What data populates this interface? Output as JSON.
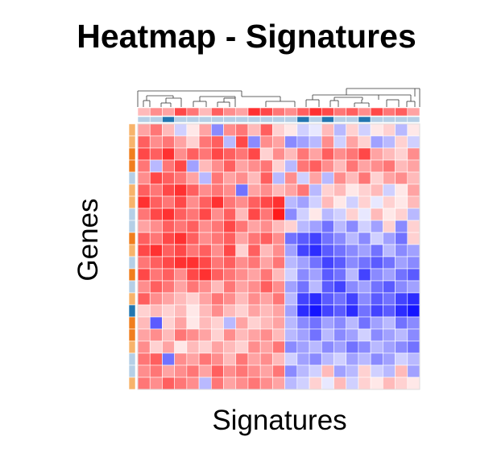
{
  "chart_data": {
    "type": "heatmap",
    "title": "Heatmap - Signatures",
    "xlabel": "Signatures",
    "ylabel": "Genes",
    "n_columns": 23,
    "n_rows": 22,
    "value_range": [
      -1,
      1
    ],
    "colors": {
      "low": "#1414ff",
      "mid": "#ffffff",
      "high": "#ff1a1a"
    },
    "column_annotation_colors": {
      "a": "#b5cfe6",
      "b": "#2276b0"
    },
    "row_annotation_colors": {
      "a": "#f7b36b",
      "b": "#f07e1e",
      "c": "#b5cfe6",
      "d": "#2276b0"
    },
    "column_top_values": [
      0.3,
      0.5,
      0.4,
      0.8,
      0.6,
      0.3,
      0.7,
      0.5,
      0.4,
      0.9,
      0.8,
      0.6,
      0.5,
      0.7,
      0.9,
      0.8,
      0.6,
      0.7,
      0.5,
      0.8,
      0.6,
      0.7,
      0.4
    ],
    "column_annotation": [
      "a",
      "a",
      "b",
      "a",
      "a",
      "a",
      "a",
      "a",
      "a",
      "a",
      "a",
      "a",
      "a",
      "b",
      "a",
      "b",
      "a",
      "a",
      "b",
      "a",
      "a",
      "a",
      "a"
    ],
    "row_annotation": [
      "a",
      "a",
      "b",
      "b",
      "c",
      "a",
      "a",
      "c",
      "c",
      "b",
      "a",
      "c",
      "b",
      "c",
      "a",
      "d",
      "b",
      "b",
      "a",
      "c",
      "c",
      "a"
    ],
    "matrix": [
      [
        0.4,
        0.6,
        0.3,
        -0.2,
        0.1,
        0.4,
        -0.5,
        0.5,
        0.6,
        0.3,
        0.7,
        0.2,
        0.1,
        -0.2,
        -0.1,
        0.3,
        -0.3,
        0.2,
        -0.2,
        0.1,
        0.2,
        -0.3,
        0.1
      ],
      [
        0.7,
        0.5,
        0.6,
        0.4,
        0.2,
        0.6,
        0.7,
        -0.3,
        0.8,
        -0.5,
        0.5,
        0.4,
        -0.5,
        -0.4,
        -0.3,
        0.5,
        -0.2,
        0.4,
        0.2,
        -0.4,
        -0.3,
        0.2,
        -0.2
      ],
      [
        0.8,
        0.7,
        0.9,
        0.5,
        0.7,
        0.6,
        0.8,
        0.7,
        0.6,
        0.8,
        0.2,
        0.5,
        0.3,
        0.6,
        0.4,
        0.7,
        0.5,
        0.6,
        0.8,
        0.4,
        0.3,
        0.2,
        0.5
      ],
      [
        0.6,
        -0.3,
        0.6,
        0.8,
        -0.4,
        0.3,
        0.5,
        0.7,
        0.4,
        0.5,
        0.6,
        0.2,
        -0.3,
        0.6,
        0.7,
        0.5,
        0.3,
        0.6,
        0.4,
        0.5,
        0.6,
        0.3,
        0.4
      ],
      [
        0.5,
        0.8,
        0.7,
        0.6,
        0.4,
        -0.3,
        0.6,
        0.4,
        0.5,
        0.3,
        0.7,
        -0.3,
        0.5,
        -0.2,
        0.4,
        -0.3,
        0.5,
        0.3,
        0.6,
        0.2,
        0.4,
        0.5,
        0.3
      ],
      [
        0.7,
        0.6,
        0.8,
        0.9,
        0.7,
        0.5,
        0.6,
        0.5,
        -0.6,
        0.4,
        0.5,
        0.3,
        0.4,
        0.6,
        -0.3,
        0.2,
        0.3,
        0.1,
        0.2,
        0.3,
        -0.2,
        0.1,
        0.4
      ],
      [
        0.9,
        0.7,
        0.6,
        0.8,
        0.5,
        0.7,
        0.9,
        0.6,
        0.5,
        0.7,
        0.8,
        0.9,
        -0.3,
        -0.4,
        -0.2,
        0.3,
        0.1,
        -0.2,
        0.2,
        -0.1,
        0.2,
        0.1,
        0.3
      ],
      [
        0.6,
        0.8,
        0.9,
        0.7,
        0.6,
        0.8,
        0.5,
        0.7,
        0.3,
        0.8,
        0.6,
        1.0,
        -0.5,
        -0.2,
        0.1,
        -0.3,
        -0.2,
        0.2,
        -0.1,
        0.3,
        0.1,
        0.2,
        -0.3
      ],
      [
        0.4,
        0.5,
        0.7,
        0.6,
        0.7,
        0.5,
        0.6,
        0.8,
        0.6,
        0.4,
        0.5,
        0.3,
        0.2,
        -0.3,
        -0.4,
        -0.6,
        -0.3,
        -0.5,
        -0.2,
        -0.4,
        0.2,
        -0.5,
        0.2
      ],
      [
        0.7,
        0.6,
        0.8,
        0.9,
        0.7,
        0.5,
        0.6,
        0.7,
        0.4,
        0.6,
        0.7,
        0.5,
        -0.6,
        -0.7,
        -0.8,
        -0.6,
        -0.5,
        -0.3,
        -0.5,
        -0.2,
        -0.4,
        -0.6,
        0.2
      ],
      [
        0.8,
        0.9,
        0.7,
        0.8,
        0.6,
        0.7,
        0.5,
        0.8,
        0.2,
        0.7,
        0.3,
        0.5,
        -0.4,
        -0.8,
        -0.9,
        -0.7,
        -0.6,
        -0.5,
        -0.4,
        -0.6,
        -0.3,
        -0.5,
        -0.4
      ],
      [
        0.6,
        0.7,
        0.8,
        0.9,
        0.9,
        0.8,
        0.6,
        0.7,
        0.5,
        0.6,
        0.4,
        0.6,
        -0.3,
        -0.4,
        -0.6,
        -0.8,
        -0.7,
        -0.5,
        -0.6,
        -0.7,
        -0.6,
        -0.4,
        -0.5
      ],
      [
        0.8,
        0.6,
        0.7,
        0.5,
        0.8,
        0.9,
        0.7,
        0.6,
        0.5,
        0.4,
        0.6,
        0.3,
        -0.2,
        -0.5,
        -0.4,
        -0.7,
        -0.6,
        -0.3,
        -0.8,
        -0.5,
        -0.4,
        -0.6,
        -0.7
      ],
      [
        0.5,
        0.7,
        0.6,
        0.4,
        0.6,
        0.5,
        0.3,
        0.6,
        0.4,
        0.5,
        0.7,
        0.5,
        -0.4,
        -0.6,
        -0.3,
        -0.7,
        -0.8,
        -0.5,
        -0.4,
        -0.6,
        -0.7,
        -0.5,
        -0.4
      ],
      [
        0.7,
        0.5,
        0.4,
        0.3,
        0.2,
        0.4,
        0.6,
        0.5,
        0.3,
        0.5,
        0.4,
        0.6,
        -0.3,
        -0.8,
        -0.9,
        -0.7,
        -0.6,
        -0.8,
        -0.5,
        -0.7,
        -0.6,
        -0.8,
        -0.9
      ],
      [
        0.2,
        0.3,
        0.2,
        0.3,
        0.1,
        0.3,
        0.5,
        0.3,
        0.2,
        0.4,
        0.3,
        0.4,
        -0.4,
        -0.9,
        -1.0,
        -0.8,
        -0.7,
        -0.9,
        -0.6,
        -0.8,
        -0.7,
        -0.9,
        -1.0
      ],
      [
        0.3,
        -0.7,
        0.2,
        0.4,
        0.1,
        0.3,
        0.2,
        -0.3,
        0.4,
        0.2,
        0.3,
        0.4,
        -0.3,
        -0.5,
        -0.6,
        -0.4,
        -0.5,
        -0.3,
        -0.6,
        -0.4,
        -0.3,
        -0.6,
        -0.5
      ],
      [
        0.4,
        0.5,
        0.3,
        0.6,
        0.5,
        0.4,
        0.2,
        0.5,
        0.3,
        0.4,
        0.5,
        0.3,
        -0.3,
        -0.4,
        -0.6,
        -0.3,
        -0.5,
        -0.4,
        -0.2,
        -0.5,
        -0.4,
        -0.3,
        -0.5
      ],
      [
        0.5,
        0.2,
        0.4,
        0.1,
        0.3,
        0.2,
        0.4,
        0.3,
        0.2,
        0.5,
        0.4,
        0.6,
        -0.5,
        -0.4,
        -0.3,
        -0.5,
        -0.4,
        -0.6,
        -0.5,
        -0.3,
        -0.4,
        -0.5,
        -0.6
      ],
      [
        0.6,
        0.7,
        -0.6,
        0.5,
        0.4,
        0.6,
        0.5,
        0.3,
        0.6,
        0.4,
        0.5,
        0.3,
        -0.2,
        -0.4,
        -0.5,
        -0.3,
        -0.2,
        -0.4,
        -0.3,
        -0.5,
        -0.4,
        -0.2,
        -0.3
      ],
      [
        0.5,
        0.6,
        0.4,
        0.5,
        0.6,
        0.4,
        0.7,
        0.5,
        0.6,
        0.5,
        0.4,
        0.6,
        -0.5,
        -0.3,
        -0.2,
        0.3,
        -0.4,
        -0.3,
        0.2,
        -0.2,
        -0.3,
        0.3,
        -0.4
      ],
      [
        0.6,
        0.5,
        0.7,
        0.6,
        0.5,
        -0.3,
        0.6,
        0.4,
        0.5,
        0.6,
        0.5,
        0.4,
        -0.3,
        -0.2,
        0.2,
        -0.1,
        0.3,
        -0.2,
        0.2,
        0.1,
        0.3,
        0.2,
        0.1
      ]
    ]
  }
}
